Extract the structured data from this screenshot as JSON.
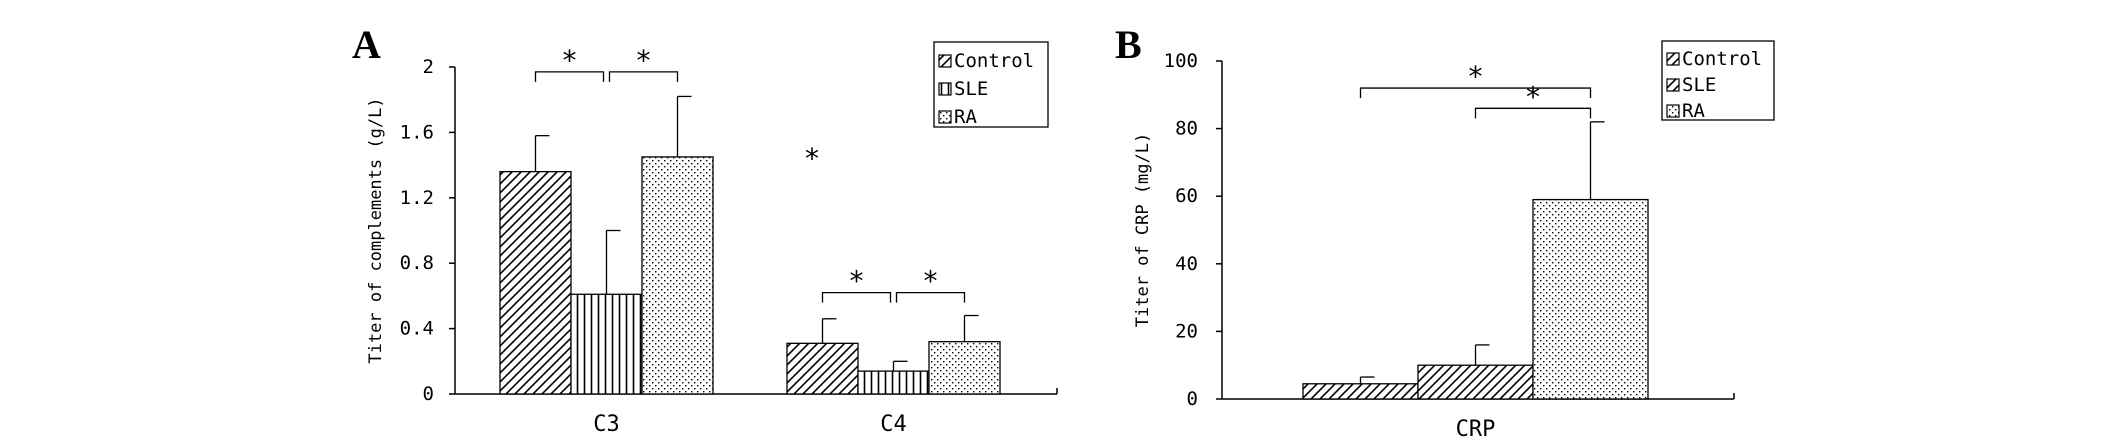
{
  "colors": {
    "ink": "#000000",
    "background": "#ffffff"
  },
  "chart_data": [
    {
      "panel": "A",
      "type": "bar",
      "categories": [
        "C3",
        "C4"
      ],
      "ylabel": "Titer of complements (g/L)",
      "xlabel": "",
      "ylim": [
        0,
        2
      ],
      "yticks": [
        "0",
        "0.4",
        "0.8",
        "1.2",
        "1.6",
        "2"
      ],
      "series": [
        {
          "name": "Control",
          "pattern": "diagonal-hatch",
          "values": [
            1.36,
            0.31
          ],
          "errors": [
            0.22,
            0.15
          ]
        },
        {
          "name": "SLE",
          "pattern": "vertical-lines",
          "values": [
            0.61,
            0.14
          ],
          "errors": [
            0.39,
            0.06
          ]
        },
        {
          "name": "RA",
          "pattern": "dots",
          "values": [
            1.45,
            0.32
          ],
          "errors": [
            0.37,
            0.16
          ]
        }
      ],
      "legend": {
        "placement": "top-right",
        "labels": [
          "Control",
          "SLE",
          "RA"
        ]
      },
      "significance": [
        {
          "label": "*",
          "category": "C3",
          "from": "Control",
          "to": "SLE",
          "y": 1.97
        },
        {
          "label": "*",
          "category": "C3",
          "from": "SLE",
          "to": "RA",
          "y": 1.97
        },
        {
          "label": "*",
          "category": "C4",
          "from": "Control",
          "to": "SLE",
          "y": 0.62
        },
        {
          "label": "*",
          "category": "C4",
          "from": "SLE",
          "to": "RA",
          "y": 0.62
        }
      ],
      "stray_mark": {
        "label": "*"
      }
    },
    {
      "panel": "B",
      "type": "bar",
      "categories": [
        "CRP"
      ],
      "ylabel": "Titer of CRP (mg/L)",
      "xlabel": "",
      "ylim": [
        0,
        100
      ],
      "yticks": [
        "0",
        "20",
        "40",
        "60",
        "80",
        "100"
      ],
      "series": [
        {
          "name": "Control",
          "pattern": "diagonal-hatch",
          "values": [
            4.5
          ],
          "errors": [
            2.0
          ]
        },
        {
          "name": "SLE",
          "pattern": "diagonal-hatch",
          "values": [
            10.0
          ],
          "errors": [
            6.0
          ]
        },
        {
          "name": "RA",
          "pattern": "dots",
          "values": [
            59.0
          ],
          "errors": [
            23.0
          ]
        }
      ],
      "legend": {
        "placement": "top-right",
        "labels": [
          "Control",
          "SLE",
          "RA"
        ]
      },
      "significance": [
        {
          "label": "*",
          "category": "CRP",
          "from": "Control",
          "to": "RA",
          "y": 92
        },
        {
          "label": "*",
          "category": "CRP",
          "from": "SLE",
          "to": "RA",
          "y": 86
        }
      ]
    }
  ]
}
